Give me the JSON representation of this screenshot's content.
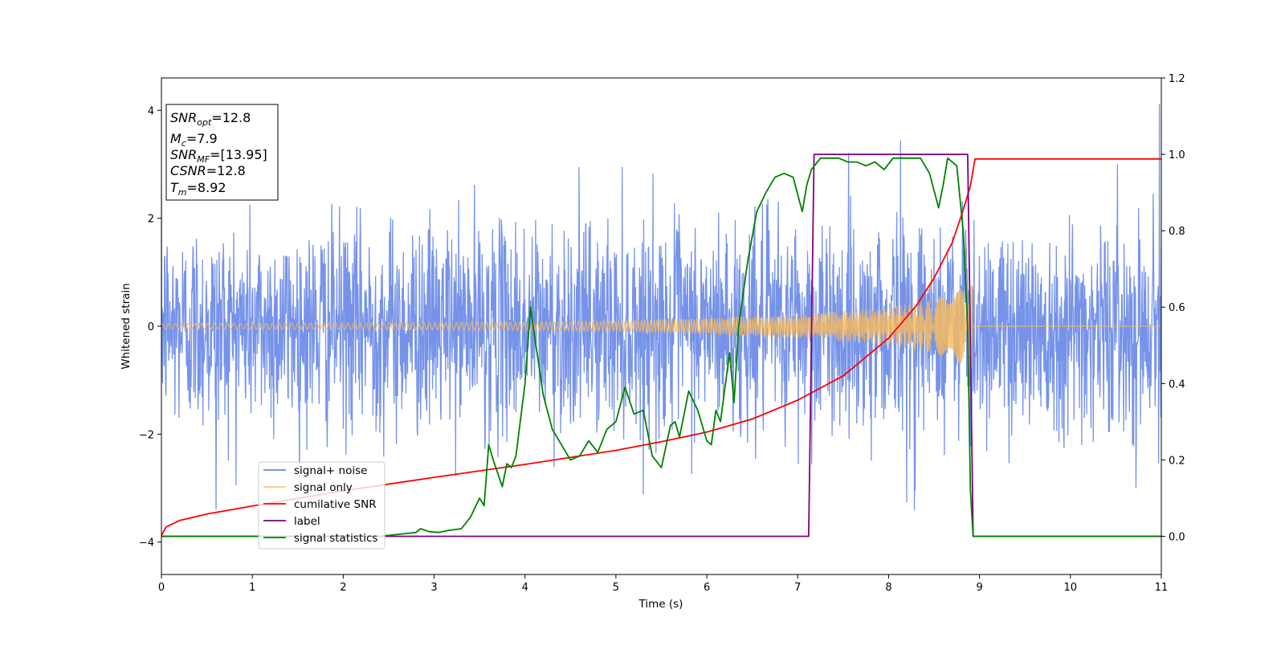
{
  "chart_data": {
    "type": "line",
    "xlabel": "Time (s)",
    "ylabel": "Whitened strain",
    "xlim": [
      0,
      11
    ],
    "ylim_left": [
      -4.6,
      4.6
    ],
    "ylim_right": [
      -0.1,
      1.2
    ],
    "x_ticks": [
      0,
      1,
      2,
      3,
      4,
      5,
      6,
      7,
      8,
      9,
      10,
      11
    ],
    "y_ticks_left": [
      -4,
      -2,
      0,
      2,
      4
    ],
    "y_ticks_right": [
      0.0,
      0.2,
      0.4,
      0.6,
      0.8,
      1.0,
      1.2
    ],
    "y_tick_labels_right": [
      "0.0",
      "0.2",
      "0.4",
      "0.6",
      "0.8",
      "1.0",
      "1.2"
    ],
    "grid": false,
    "legend_position": "lower-left",
    "info_box": {
      "lines": [
        {
          "base": "SNR",
          "sub": "opt",
          "rest": "=12.8"
        },
        {
          "base": "M",
          "sub": "c",
          "rest": "=7.9"
        },
        {
          "base": "SNR",
          "sub": "MF",
          "rest": "=[13.95]"
        },
        {
          "base": "CSNR",
          "sub": "",
          "rest": "=12.8"
        },
        {
          "base": "T",
          "sub": "m",
          "rest": "=8.92"
        }
      ]
    },
    "series": [
      {
        "name": "signal+ noise",
        "axis": "left",
        "color": "#4169e1",
        "kind": "noise_band",
        "x_range": [
          0,
          11
        ],
        "std": 1.0,
        "typical_peak": 3.0,
        "max_peaks": [
          {
            "x": 8.13,
            "y": 3.83
          },
          {
            "x": 10.98,
            "y": 4.12
          },
          {
            "x": 8.2,
            "y": -3.65
          },
          {
            "x": 0.6,
            "y": -3.35
          }
        ]
      },
      {
        "name": "signal only",
        "axis": "left",
        "color": "#f4b860",
        "kind": "chirp",
        "x_range": [
          0,
          8.92
        ],
        "amplitude_points": [
          [
            0,
            0.05
          ],
          [
            2,
            0.06
          ],
          [
            4,
            0.08
          ],
          [
            5,
            0.1
          ],
          [
            6,
            0.15
          ],
          [
            7,
            0.22
          ],
          [
            8,
            0.35
          ],
          [
            8.5,
            0.5
          ],
          [
            8.8,
            0.7
          ],
          [
            8.92,
            0.78
          ]
        ],
        "after_merger_value": 0.0
      },
      {
        "name": "cumilative SNR",
        "axis": "left",
        "color": "#ff0000",
        "x": [
          0,
          0.05,
          0.2,
          0.5,
          1,
          2,
          3,
          4,
          5,
          5.5,
          6,
          6.5,
          7,
          7.5,
          8,
          8.3,
          8.5,
          8.7,
          8.8,
          8.85,
          8.9,
          8.92,
          8.95,
          9.0,
          10,
          11
        ],
        "y": [
          -3.88,
          -3.72,
          -3.6,
          -3.48,
          -3.33,
          -3.05,
          -2.8,
          -2.56,
          -2.3,
          -2.14,
          -1.96,
          -1.72,
          -1.37,
          -0.92,
          -0.22,
          0.37,
          0.89,
          1.55,
          2.05,
          2.32,
          2.6,
          2.8,
          3.1,
          3.1,
          3.1,
          3.1
        ]
      },
      {
        "name": "label",
        "axis": "right",
        "color": "#800080",
        "x": [
          0,
          7.12,
          7.18,
          8.87,
          8.93,
          11
        ],
        "y": [
          0,
          0,
          1,
          1,
          0,
          0
        ]
      },
      {
        "name": "signal statistics",
        "axis": "right",
        "color": "#008000",
        "x": [
          0,
          2.4,
          2.6,
          2.8,
          2.85,
          2.95,
          3.05,
          3.15,
          3.3,
          3.4,
          3.5,
          3.55,
          3.6,
          3.65,
          3.75,
          3.8,
          3.85,
          3.9,
          4.0,
          4.06,
          4.12,
          4.2,
          4.3,
          4.4,
          4.5,
          4.6,
          4.7,
          4.8,
          4.9,
          5.0,
          5.1,
          5.2,
          5.3,
          5.4,
          5.5,
          5.6,
          5.65,
          5.7,
          5.8,
          5.9,
          6.0,
          6.05,
          6.1,
          6.15,
          6.2,
          6.25,
          6.3,
          6.35,
          6.45,
          6.55,
          6.65,
          6.75,
          6.85,
          6.95,
          7.05,
          7.1,
          7.15,
          7.25,
          7.35,
          7.45,
          7.55,
          7.65,
          7.75,
          7.85,
          7.95,
          8.05,
          8.15,
          8.25,
          8.35,
          8.45,
          8.55,
          8.6,
          8.65,
          8.75,
          8.82,
          8.87,
          8.9,
          8.93,
          8.97,
          9.1,
          11
        ],
        "y": [
          0.0,
          0.0,
          0.005,
          0.01,
          0.02,
          0.012,
          0.01,
          0.015,
          0.02,
          0.05,
          0.1,
          0.08,
          0.24,
          0.2,
          0.13,
          0.19,
          0.18,
          0.21,
          0.4,
          0.6,
          0.5,
          0.37,
          0.28,
          0.24,
          0.2,
          0.21,
          0.25,
          0.22,
          0.28,
          0.3,
          0.39,
          0.32,
          0.33,
          0.21,
          0.18,
          0.29,
          0.3,
          0.26,
          0.38,
          0.33,
          0.25,
          0.24,
          0.33,
          0.3,
          0.39,
          0.48,
          0.35,
          0.55,
          0.72,
          0.85,
          0.9,
          0.94,
          0.95,
          0.94,
          0.85,
          0.92,
          0.96,
          0.99,
          0.99,
          0.99,
          0.98,
          0.98,
          0.97,
          0.98,
          0.96,
          0.99,
          0.99,
          0.99,
          0.99,
          0.95,
          0.86,
          0.92,
          0.99,
          0.97,
          0.8,
          0.55,
          0.12,
          0.0,
          0.0,
          0.0,
          0.0
        ]
      }
    ]
  }
}
